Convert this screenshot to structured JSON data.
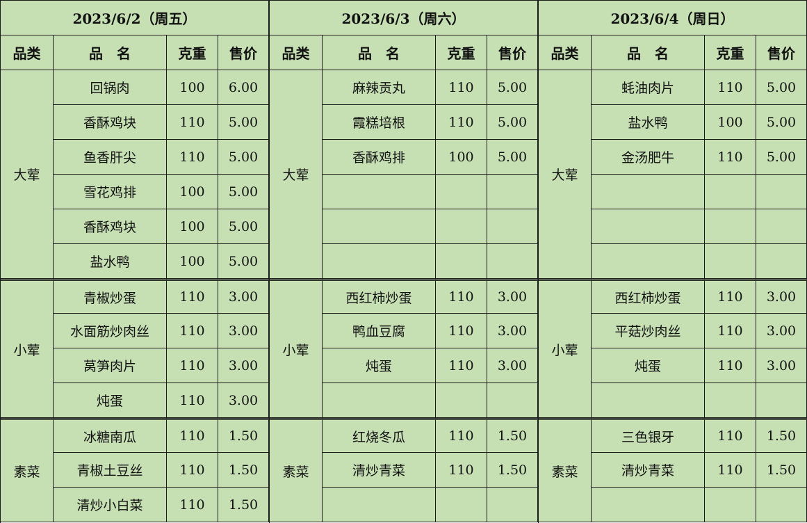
{
  "columns": {
    "category": "品类",
    "name": "品　名",
    "weight": "克重",
    "price": "售价"
  },
  "days": [
    {
      "date": "2023/6/2（周五）",
      "sections": [
        {
          "category": "大荤",
          "items": [
            {
              "name": "回锅肉",
              "weight": "100",
              "price": "6.00"
            },
            {
              "name": "香酥鸡块",
              "weight": "110",
              "price": "5.00"
            },
            {
              "name": "鱼香肝尖",
              "weight": "110",
              "price": "5.00"
            },
            {
              "name": "雪花鸡排",
              "weight": "100",
              "price": "5.00"
            },
            {
              "name": "香酥鸡块",
              "weight": "100",
              "price": "5.00"
            },
            {
              "name": "盐水鸭",
              "weight": "100",
              "price": "5.00"
            }
          ]
        },
        {
          "category": "小荤",
          "items": [
            {
              "name": "青椒炒蛋",
              "weight": "110",
              "price": "3.00"
            },
            {
              "name": "水面筋炒肉丝",
              "weight": "110",
              "price": "3.00"
            },
            {
              "name": "莴笋肉片",
              "weight": "110",
              "price": "3.00"
            },
            {
              "name": "炖蛋",
              "weight": "110",
              "price": "3.00"
            }
          ]
        },
        {
          "category": "素菜",
          "items": [
            {
              "name": "冰糖南瓜",
              "weight": "110",
              "price": "1.50"
            },
            {
              "name": "青椒土豆丝",
              "weight": "110",
              "price": "1.50"
            },
            {
              "name": "清炒小白菜",
              "weight": "110",
              "price": "1.50"
            }
          ]
        }
      ]
    },
    {
      "date": "2023/6/3（周六）",
      "sections": [
        {
          "category": "大荤",
          "items": [
            {
              "name": "麻辣贡丸",
              "weight": "110",
              "price": "5.00"
            },
            {
              "name": "霞糕培根",
              "weight": "110",
              "price": "5.00"
            },
            {
              "name": "香酥鸡排",
              "weight": "100",
              "price": "5.00"
            }
          ]
        },
        {
          "category": "小荤",
          "items": [
            {
              "name": "西红柿炒蛋",
              "weight": "110",
              "price": "3.00"
            },
            {
              "name": "鸭血豆腐",
              "weight": "110",
              "price": "3.00"
            },
            {
              "name": "炖蛋",
              "weight": "110",
              "price": "3.00"
            }
          ]
        },
        {
          "category": "素菜",
          "items": [
            {
              "name": "红烧冬瓜",
              "weight": "110",
              "price": "1.50"
            },
            {
              "name": "清炒青菜",
              "weight": "110",
              "price": "1.50"
            }
          ]
        }
      ]
    },
    {
      "date": "2023/6/4（周日）",
      "sections": [
        {
          "category": "大荤",
          "items": [
            {
              "name": "蚝油肉片",
              "weight": "110",
              "price": "5.00"
            },
            {
              "name": "盐水鸭",
              "weight": "100",
              "price": "5.00"
            },
            {
              "name": "金汤肥牛",
              "weight": "110",
              "price": "5.00"
            }
          ]
        },
        {
          "category": "小荤",
          "items": [
            {
              "name": "西红柿炒蛋",
              "weight": "110",
              "price": "3.00"
            },
            {
              "name": "平菇炒肉丝",
              "weight": "110",
              "price": "3.00"
            },
            {
              "name": "炖蛋",
              "weight": "110",
              "price": "3.00"
            }
          ]
        },
        {
          "category": "素菜",
          "items": [
            {
              "name": "三色银牙",
              "weight": "110",
              "price": "1.50"
            },
            {
              "name": "清炒青菜",
              "weight": "110",
              "price": "1.50"
            }
          ]
        }
      ]
    }
  ]
}
